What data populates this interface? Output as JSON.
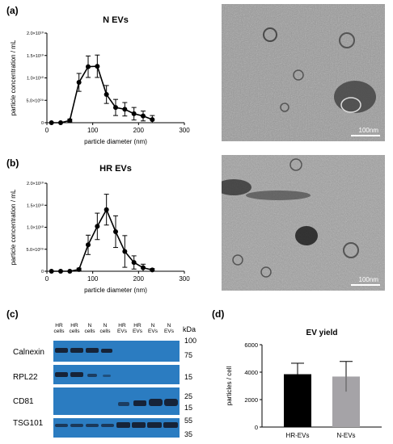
{
  "panels": {
    "a": {
      "label": "(a)",
      "scalebar": "100nm"
    },
    "b": {
      "label": "(b)",
      "scalebar": "100nm"
    },
    "c": {
      "label": "(c)"
    },
    "d": {
      "label": "(d)"
    }
  },
  "chart_data": [
    {
      "id": "a",
      "type": "line",
      "title": "N EVs",
      "xlabel": "particle diameter (nm)",
      "ylabel": "particle concentration / mL",
      "xlim": [
        0,
        300
      ],
      "ylim": [
        0,
        20000000000
      ],
      "xticks": [
        "0",
        "100",
        "200",
        "300"
      ],
      "yticks": [
        "0",
        "5.0×10⁰⁹",
        "1.0×10¹⁰",
        "1.5×10¹⁰",
        "2.0×10¹⁰"
      ],
      "x": [
        10,
        30,
        50,
        70,
        90,
        110,
        130,
        150,
        170,
        190,
        210,
        230
      ],
      "y": [
        0,
        0,
        500000000,
        9000000000,
        12500000000,
        12600000000,
        6300000000,
        3400000000,
        3000000000,
        2000000000,
        1500000000,
        700000000
      ],
      "err": [
        0,
        0,
        300000000,
        2000000000,
        2400000000,
        2500000000,
        2000000000,
        1800000000,
        1500000000,
        1400000000,
        1100000000,
        900000000
      ]
    },
    {
      "id": "b",
      "type": "line",
      "title": "HR EVs",
      "xlabel": "particle diameter (nm)",
      "ylabel": "particle concentration / mL",
      "xlim": [
        0,
        300
      ],
      "ylim": [
        0,
        20000000000
      ],
      "xticks": [
        "0",
        "100",
        "200",
        "300"
      ],
      "yticks": [
        "0",
        "5.0×10⁰⁹",
        "1.0×10¹⁰",
        "1.5×10¹⁰",
        "2.0×10¹⁰"
      ],
      "x": [
        10,
        30,
        50,
        70,
        90,
        110,
        130,
        150,
        170,
        190,
        210,
        230
      ],
      "y": [
        0,
        0,
        0,
        400000000,
        6000000000,
        10200000000,
        14000000000,
        9000000000,
        4500000000,
        2000000000,
        800000000,
        300000000
      ],
      "err": [
        0,
        0,
        0,
        300000000,
        2200000000,
        3000000000,
        3500000000,
        3600000000,
        3600000000,
        1500000000,
        800000000,
        300000000
      ]
    },
    {
      "id": "d",
      "type": "bar",
      "title": "EV yield",
      "xlabel": "",
      "ylabel": "particles / cell",
      "ylim": [
        0,
        6000
      ],
      "yticks": [
        "0",
        "2000",
        "4000",
        "6000"
      ],
      "categories": [
        "HR-EVs",
        "N-EVs"
      ],
      "values": [
        3850,
        3680
      ],
      "err": [
        800,
        1100
      ],
      "colors": [
        "#000000",
        "#a5a3a7"
      ]
    }
  ],
  "blot": {
    "lanes": [
      [
        "HR",
        "cells"
      ],
      [
        "HR",
        "cells"
      ],
      [
        "N",
        "cells"
      ],
      [
        "N",
        "cells"
      ],
      [
        "HR",
        "EVs"
      ],
      [
        "HR",
        "EVs"
      ],
      [
        "N",
        "EVs"
      ],
      [
        "N",
        "EVs"
      ]
    ],
    "kda_header": "kDa",
    "rows": [
      {
        "label": "Calnexin",
        "markers": [
          "100",
          "75"
        ]
      },
      {
        "label": "RPL22",
        "markers": [
          "15"
        ]
      },
      {
        "label": "CD81",
        "markers": [
          "25",
          "15"
        ]
      },
      {
        "label": "TSG101",
        "markers": [
          "55",
          "35"
        ]
      }
    ]
  }
}
